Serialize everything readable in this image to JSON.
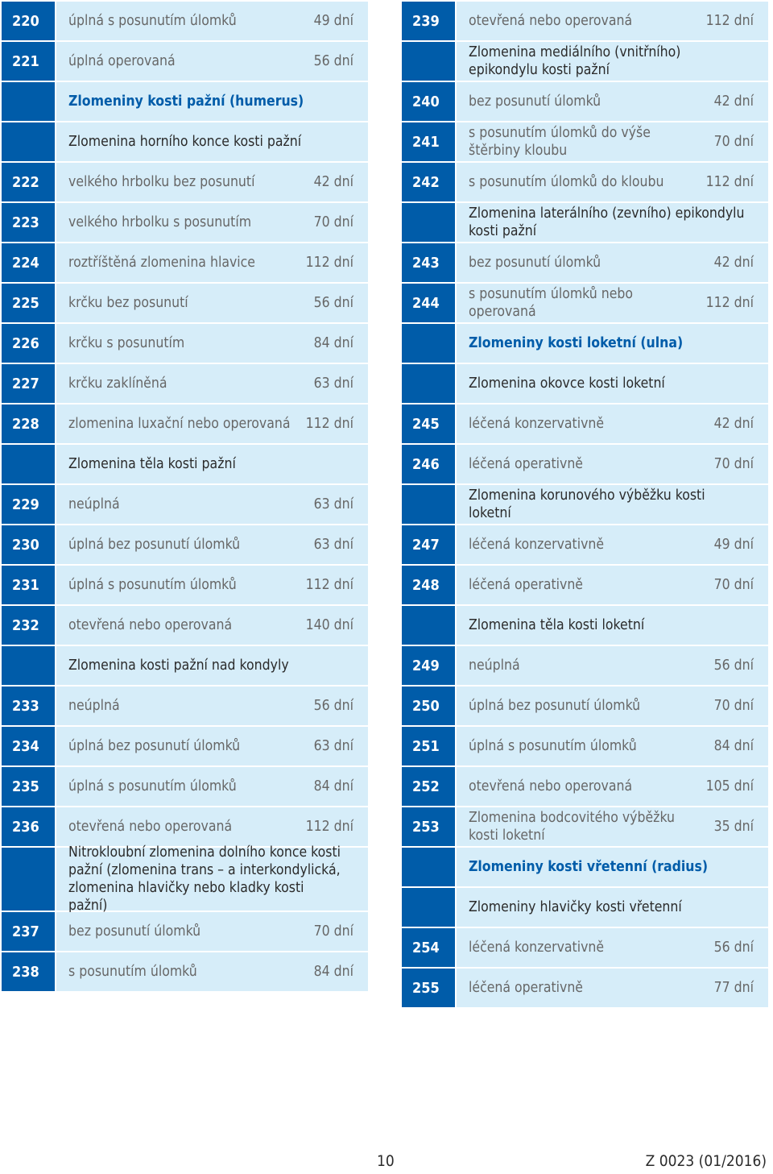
{
  "columns": [
    {
      "rows": [
        {
          "num": "220",
          "label": "úplná s posunutím úlomků",
          "days": "49 dní",
          "kind": "item"
        },
        {
          "num": "221",
          "label": "úplná operovaná",
          "days": "56 dní",
          "kind": "item"
        },
        {
          "num": "",
          "label": "Zlomeniny kosti pažní (humerus)",
          "days": "",
          "kind": "heading"
        },
        {
          "num": "",
          "label": "Zlomenina horního konce kosti pažní",
          "days": "",
          "kind": "sub"
        },
        {
          "num": "222",
          "label": "velkého hrbolku bez posunutí",
          "days": "42 dní",
          "kind": "item"
        },
        {
          "num": "223",
          "label": "velkého hrbolku s posunutím",
          "days": "70 dní",
          "kind": "item"
        },
        {
          "num": "224",
          "label": "roztříštěná zlomenina hlavice",
          "days": "112 dní",
          "kind": "item"
        },
        {
          "num": "225",
          "label": "krčku bez posunutí",
          "days": "56 dní",
          "kind": "item"
        },
        {
          "num": "226",
          "label": "krčku s posunutím",
          "days": "84 dní",
          "kind": "item"
        },
        {
          "num": "227",
          "label": "krčku zaklíněná",
          "days": "63 dní",
          "kind": "item"
        },
        {
          "num": "228",
          "label": "zlomenina luxační nebo operovaná",
          "days": "112 dní",
          "kind": "item"
        },
        {
          "num": "",
          "label": "Zlomenina těla kosti pažní",
          "days": "",
          "kind": "sub"
        },
        {
          "num": "229",
          "label": "neúplná",
          "days": "63 dní",
          "kind": "item"
        },
        {
          "num": "230",
          "label": "úplná bez posunutí úlomků",
          "days": "63 dní",
          "kind": "item"
        },
        {
          "num": "231",
          "label": "úplná s posunutím úlomků",
          "days": "112 dní",
          "kind": "item"
        },
        {
          "num": "232",
          "label": "otevřená nebo operovaná",
          "days": "140 dní",
          "kind": "item"
        },
        {
          "num": "",
          "label": "Zlomenina kosti pažní nad kondyly",
          "days": "",
          "kind": "sub"
        },
        {
          "num": "233",
          "label": "neúplná",
          "days": "56 dní",
          "kind": "item"
        },
        {
          "num": "234",
          "label": "úplná bez posunutí úlomků",
          "days": "63 dní",
          "kind": "item"
        },
        {
          "num": "235",
          "label": "úplná s posunutím úlomků",
          "days": "84 dní",
          "kind": "item"
        },
        {
          "num": "236",
          "label": "otevřená nebo operovaná",
          "days": "112 dní",
          "kind": "item"
        },
        {
          "num": "",
          "label": "Nitrokloubní zlomenina dolního konce kosti pažní (zlomenina trans – a interkondylická, zlomenina hlavičky nebo kladky kosti pažní)",
          "days": "",
          "kind": "sub"
        },
        {
          "num": "237",
          "label": "bez posunutí úlomků",
          "days": "70 dní",
          "kind": "item"
        },
        {
          "num": "238",
          "label": "s posunutím úlomků",
          "days": "84 dní",
          "kind": "item"
        }
      ]
    },
    {
      "rows": [
        {
          "num": "239",
          "label": "otevřená nebo operovaná",
          "days": "112 dní",
          "kind": "item"
        },
        {
          "num": "",
          "label": "Zlomenina mediálního (vnitřního) epikondylu kosti pažní",
          "days": "",
          "kind": "sub"
        },
        {
          "num": "240",
          "label": "bez posunutí úlomků",
          "days": "42 dní",
          "kind": "item"
        },
        {
          "num": "241",
          "label": "s posunutím úlomků do výše štěrbiny kloubu",
          "days": "70 dní",
          "kind": "item"
        },
        {
          "num": "242",
          "label": "s posunutím úlomků do kloubu",
          "days": "112 dní",
          "kind": "item"
        },
        {
          "num": "",
          "label": "Zlomenina laterálního (zevního) epikondylu kosti pažní",
          "days": "",
          "kind": "sub"
        },
        {
          "num": "243",
          "label": "bez posunutí úlomků",
          "days": "42 dní",
          "kind": "item"
        },
        {
          "num": "244",
          "label": "s posunutím úlomků nebo operovaná",
          "days": "112 dní",
          "kind": "item"
        },
        {
          "num": "",
          "label": "Zlomeniny kosti loketní (ulna)",
          "days": "",
          "kind": "heading"
        },
        {
          "num": "",
          "label": "Zlomenina okovce kosti loketní",
          "days": "",
          "kind": "sub"
        },
        {
          "num": "245",
          "label": "léčená konzervativně",
          "days": "42 dní",
          "kind": "item"
        },
        {
          "num": "246",
          "label": "léčená operativně",
          "days": "70 dní",
          "kind": "item"
        },
        {
          "num": "",
          "label": "Zlomenina korunového výběžku kosti loketní",
          "days": "",
          "kind": "sub"
        },
        {
          "num": "247",
          "label": "léčená konzervativně",
          "days": "49 dní",
          "kind": "item"
        },
        {
          "num": "248",
          "label": "léčená operativně",
          "days": "70 dní",
          "kind": "item"
        },
        {
          "num": "",
          "label": "Zlomenina těla kosti loketní",
          "days": "",
          "kind": "sub"
        },
        {
          "num": "249",
          "label": "neúplná",
          "days": "56 dní",
          "kind": "item"
        },
        {
          "num": "250",
          "label": "úplná bez posunutí úlomků",
          "days": "70 dní",
          "kind": "item"
        },
        {
          "num": "251",
          "label": "úplná s posunutím úlomků",
          "days": "84 dní",
          "kind": "item"
        },
        {
          "num": "252",
          "label": "otevřená nebo operovaná",
          "days": "105 dní",
          "kind": "item"
        },
        {
          "num": "253",
          "label": "Zlomenina bodcovitého výběžku kosti loketní",
          "days": "35 dní",
          "kind": "item"
        },
        {
          "num": "",
          "label": "Zlomeniny kosti vřetenní (radius)",
          "days": "",
          "kind": "heading"
        },
        {
          "num": "",
          "label": "Zlomeniny hlavičky kosti vřetenní",
          "days": "",
          "kind": "sub"
        },
        {
          "num": "254",
          "label": "léčená konzervativně",
          "days": "56 dní",
          "kind": "item"
        },
        {
          "num": "255",
          "label": "léčená operativně",
          "days": "77 dní",
          "kind": "item"
        }
      ]
    }
  ],
  "footer": {
    "page_number": "10",
    "form_code": "Z 0023 (01/2016)"
  }
}
